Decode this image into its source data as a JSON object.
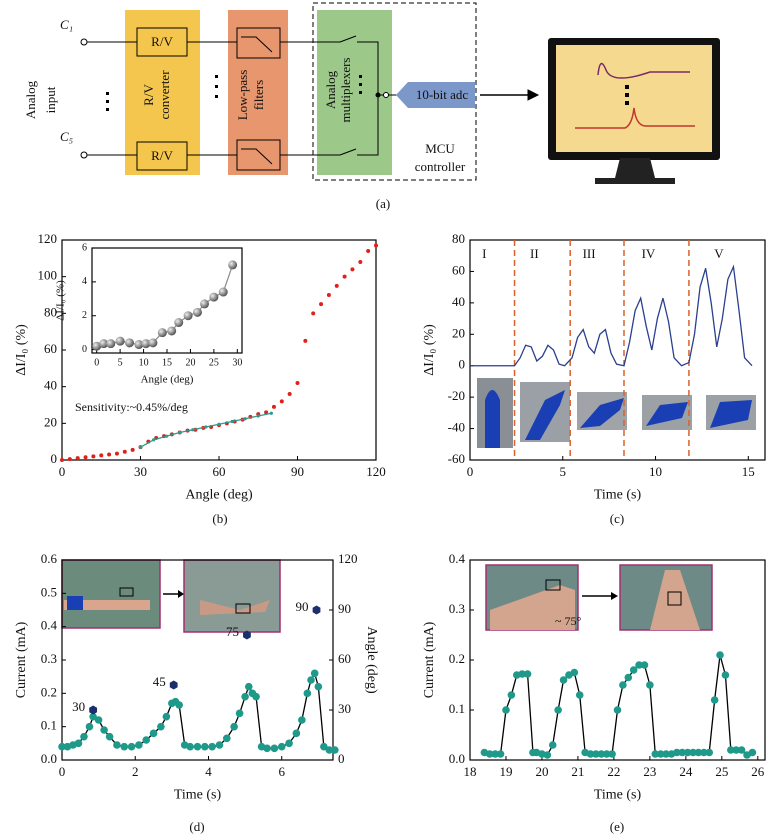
{
  "diagram": {
    "panel_label": "(a)",
    "inputs": [
      "C₁",
      "C₅"
    ],
    "analog_input": [
      "Analog",
      "input"
    ],
    "rv": [
      "R/V",
      "R/V"
    ],
    "rv_converter": [
      "R/V",
      "converter"
    ],
    "low_pass": [
      "Low-pass",
      "filters"
    ],
    "mux": [
      "Analog",
      "multiplexers"
    ],
    "adc": "10-bit adc",
    "mcu": [
      "MCU",
      "controller"
    ]
  },
  "chart_data": [
    {
      "type": "scatter",
      "panel_label": "(b)",
      "xlabel": "Angle (deg)",
      "ylabel": "ΔI/I₀ (%)",
      "annotation": "Sensitivity:~0.45%/deg",
      "xlim": [
        0,
        120
      ],
      "xticks": [
        0,
        30,
        60,
        90,
        120
      ],
      "ylim": [
        0,
        120
      ],
      "yticks": [
        0,
        20,
        40,
        60,
        80,
        100,
        120
      ],
      "series": [
        {
          "color": "#e0201b",
          "style": "markers",
          "x": [
            0,
            3,
            6,
            9,
            12,
            15,
            18,
            21,
            24,
            27,
            30,
            33,
            36,
            39,
            42,
            45,
            48,
            51,
            54,
            57,
            60,
            63,
            66,
            69,
            72,
            75,
            78,
            81,
            84,
            87,
            90,
            93,
            96,
            99,
            102,
            105,
            108,
            111,
            114,
            117,
            120
          ],
          "values": [
            0,
            0.5,
            1,
            1.5,
            2,
            2.5,
            3,
            3.5,
            4.5,
            5.5,
            7,
            10,
            12,
            13,
            14,
            15,
            16,
            16.5,
            17.5,
            18,
            19,
            20,
            21,
            22,
            23.5,
            25,
            26,
            29,
            32,
            36,
            42,
            65,
            80,
            85,
            90,
            95,
            100,
            104,
            108,
            114,
            117
          ]
        },
        {
          "color": "#2a9d8f",
          "style": "line+markers",
          "x": [
            30,
            35,
            40,
            45,
            50,
            55,
            60,
            65,
            70,
            75,
            80
          ],
          "values": [
            7,
            11,
            13,
            15,
            16.5,
            18,
            19.5,
            21,
            22.5,
            24,
            25.5
          ]
        }
      ]
    },
    {
      "type": "scatter",
      "xlabel": "Angle (deg)",
      "ylabel": "ΔI/I₀ (%)",
      "xlim": [
        -1,
        31
      ],
      "xticks": [
        0,
        5,
        10,
        15,
        20,
        25,
        30
      ],
      "ylim": [
        -0.2,
        6
      ],
      "yticks": [
        0,
        2,
        4,
        6
      ],
      "series": [
        {
          "color": "#8a8a8a",
          "style": "line+markers",
          "marker": "sphere",
          "x": [
            0,
            1.5,
            3,
            5,
            7,
            9,
            10.5,
            12,
            14,
            16,
            17.5,
            19.5,
            21.5,
            23,
            25,
            27,
            29
          ],
          "values": [
            0.2,
            0.35,
            0.35,
            0.5,
            0.4,
            0.3,
            0.35,
            0.4,
            1.0,
            1.1,
            1.6,
            2.0,
            2.2,
            2.7,
            3.1,
            3.4,
            5.0
          ]
        }
      ]
    },
    {
      "type": "line",
      "panel_label": "(c)",
      "xlabel": "Time (s)",
      "ylabel": "ΔI/I₀ (%)",
      "xlim": [
        0,
        15.9
      ],
      "xticks": [
        0,
        5,
        10,
        15
      ],
      "ylim": [
        -60,
        80
      ],
      "yticks": [
        -60,
        -40,
        -20,
        0,
        20,
        40,
        60,
        80
      ],
      "dividers": [
        2.4,
        5.4,
        8.3,
        11.8
      ],
      "regions": [
        "I",
        "II",
        "III",
        "IV",
        "V"
      ],
      "series": [
        {
          "color": "#2b3f8f",
          "style": "line",
          "x": [
            0,
            2.4,
            2.7,
            3.0,
            3.3,
            3.6,
            3.9,
            4.2,
            4.5,
            4.8,
            5.1,
            5.5,
            5.8,
            6.1,
            6.4,
            6.7,
            7.0,
            7.3,
            7.6,
            7.9,
            8.3,
            8.6,
            8.9,
            9.2,
            9.5,
            9.8,
            10.1,
            10.4,
            10.7,
            11.0,
            11.4,
            11.8,
            12.1,
            12.4,
            12.7,
            13.0,
            13.3,
            13.6,
            13.9,
            14.2,
            14.5,
            14.8,
            15.2
          ],
          "values": [
            0,
            0,
            5,
            13,
            12,
            3,
            6,
            13,
            10,
            1,
            0,
            5,
            18,
            23,
            12,
            8,
            20,
            23,
            8,
            1,
            0,
            15,
            35,
            43,
            25,
            10,
            30,
            43,
            28,
            5,
            0,
            2,
            20,
            50,
            62,
            40,
            12,
            30,
            55,
            63,
            35,
            5,
            0
          ]
        }
      ]
    },
    {
      "type": "line",
      "panel_label": "(d)",
      "xlabel": "Time (s)",
      "ylabel": "Current (mA)",
      "y2label": "Angle (deg)",
      "xlim": [
        0,
        7.4
      ],
      "xticks": [
        0,
        2,
        4,
        6
      ],
      "ylim": [
        0,
        0.6
      ],
      "yticks": [
        {
          "value": 0,
          "label": "0.0"
        },
        0.1,
        0.2,
        0.3,
        0.4,
        0.5,
        0.6
      ],
      "y2lim": [
        0,
        120
      ],
      "y2ticks": [
        0,
        30,
        60,
        90,
        120
      ],
      "series": [
        {
          "color": "#1f9a8a",
          "line_color": "#000000",
          "style": "line+markers",
          "x": [
            0,
            0.15,
            0.3,
            0.45,
            0.6,
            0.75,
            0.85,
            1.0,
            1.15,
            1.3,
            1.5,
            1.7,
            1.9,
            2.1,
            2.3,
            2.5,
            2.7,
            2.85,
            3.0,
            3.1,
            3.2,
            3.35,
            3.5,
            3.7,
            3.9,
            4.1,
            4.3,
            4.5,
            4.7,
            4.85,
            5.0,
            5.1,
            5.2,
            5.3,
            5.45,
            5.6,
            5.8,
            6.0,
            6.2,
            6.4,
            6.55,
            6.7,
            6.8,
            6.9,
            7.0,
            7.15,
            7.3,
            7.45
          ],
          "values": [
            0.04,
            0.04,
            0.045,
            0.05,
            0.07,
            0.1,
            0.13,
            0.12,
            0.09,
            0.07,
            0.045,
            0.04,
            0.04,
            0.045,
            0.06,
            0.08,
            0.1,
            0.13,
            0.17,
            0.175,
            0.165,
            0.045,
            0.04,
            0.04,
            0.04,
            0.04,
            0.045,
            0.065,
            0.1,
            0.14,
            0.19,
            0.22,
            0.2,
            0.19,
            0.04,
            0.035,
            0.035,
            0.04,
            0.05,
            0.08,
            0.12,
            0.2,
            0.24,
            0.26,
            0.22,
            0.04,
            0.03,
            0.03
          ]
        },
        {
          "color": "#1b2f6e",
          "style": "markers",
          "marker": "hexagon",
          "axis": "y2",
          "show_values": true,
          "x": [
            0.85,
            3.05,
            5.05,
            6.95
          ],
          "values": [
            30,
            45,
            75,
            90
          ]
        }
      ]
    },
    {
      "type": "line",
      "panel_label": "(e)",
      "xlabel": "Time (s)",
      "ylabel": "Current (mA)",
      "annotation": "~ 75°",
      "xlim": [
        18,
        26.2
      ],
      "xticks": [
        18,
        19,
        20,
        21,
        22,
        23,
        24,
        25,
        26
      ],
      "ylim": [
        0,
        0.4
      ],
      "yticks": [
        {
          "value": 0,
          "label": "0.0"
        },
        0.1,
        0.2,
        0.3,
        0.4
      ],
      "series": [
        {
          "color": "#1f9a8a",
          "line_color": "#000000",
          "style": "line+markers",
          "x": [
            18.4,
            18.55,
            18.7,
            18.85,
            19.0,
            19.15,
            19.3,
            19.45,
            19.6,
            19.75,
            19.85,
            20.0,
            20.15,
            20.3,
            20.45,
            20.6,
            20.75,
            20.9,
            21.05,
            21.2,
            21.35,
            21.5,
            21.65,
            21.8,
            21.95,
            22.1,
            22.25,
            22.4,
            22.55,
            22.7,
            22.85,
            23.0,
            23.15,
            23.3,
            23.45,
            23.6,
            23.75,
            23.9,
            24.05,
            24.2,
            24.35,
            24.5,
            24.65,
            24.8,
            24.95,
            25.1,
            25.25,
            25.4,
            25.55,
            25.7,
            25.85
          ],
          "values": [
            0.015,
            0.012,
            0.012,
            0.012,
            0.1,
            0.13,
            0.17,
            0.172,
            0.172,
            0.015,
            0.015,
            0.012,
            0.01,
            0.03,
            0.1,
            0.16,
            0.17,
            0.175,
            0.13,
            0.015,
            0.012,
            0.012,
            0.012,
            0.012,
            0.012,
            0.1,
            0.15,
            0.165,
            0.18,
            0.19,
            0.19,
            0.15,
            0.012,
            0.012,
            0.012,
            0.012,
            0.015,
            0.015,
            0.015,
            0.015,
            0.015,
            0.015,
            0.015,
            0.12,
            0.21,
            0.17,
            0.02,
            0.02,
            0.02,
            0.01,
            0.015
          ]
        }
      ]
    }
  ]
}
